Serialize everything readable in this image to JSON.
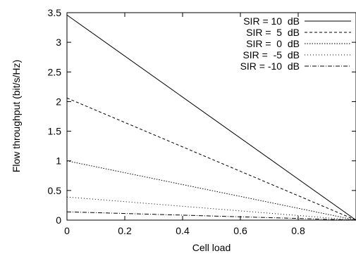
{
  "chart_data": {
    "type": "line",
    "title": "",
    "xlabel": "Cell load",
    "ylabel": "Flow throughput (bit/s/Hz)",
    "xlim": [
      0,
      1
    ],
    "ylim": [
      0,
      3.5
    ],
    "xticks": [
      0,
      0.2,
      0.4,
      0.6,
      0.8
    ],
    "xtick_labels": [
      "0",
      "0.2",
      "0.4",
      "0.6",
      "0.8"
    ],
    "yticks": [
      0,
      0.5,
      1,
      1.5,
      2,
      2.5,
      3,
      3.5
    ],
    "ytick_labels": [
      "0",
      "0.5",
      "1",
      "1.5",
      "2",
      "2.5",
      "3",
      "3.5"
    ],
    "grid": false,
    "legend_position": "top-right",
    "series": [
      {
        "name": "SIR = 10  dB",
        "x": [
          0,
          1
        ],
        "y": [
          3.46,
          0
        ],
        "dash": ""
      },
      {
        "name": "SIR =  5  dB",
        "x": [
          0,
          1
        ],
        "y": [
          2.06,
          0
        ],
        "dash": "4,3"
      },
      {
        "name": "SIR =  0  dB",
        "x": [
          0,
          1
        ],
        "y": [
          1.0,
          0
        ],
        "dash": "1.5,2"
      },
      {
        "name": "SIR =  -5  dB",
        "x": [
          0,
          1
        ],
        "y": [
          0.39,
          0
        ],
        "dash": "1,3"
      },
      {
        "name": "SIR = -10  dB",
        "x": [
          0,
          1
        ],
        "y": [
          0.14,
          0
        ],
        "dash": "6,2,1,2"
      }
    ]
  }
}
